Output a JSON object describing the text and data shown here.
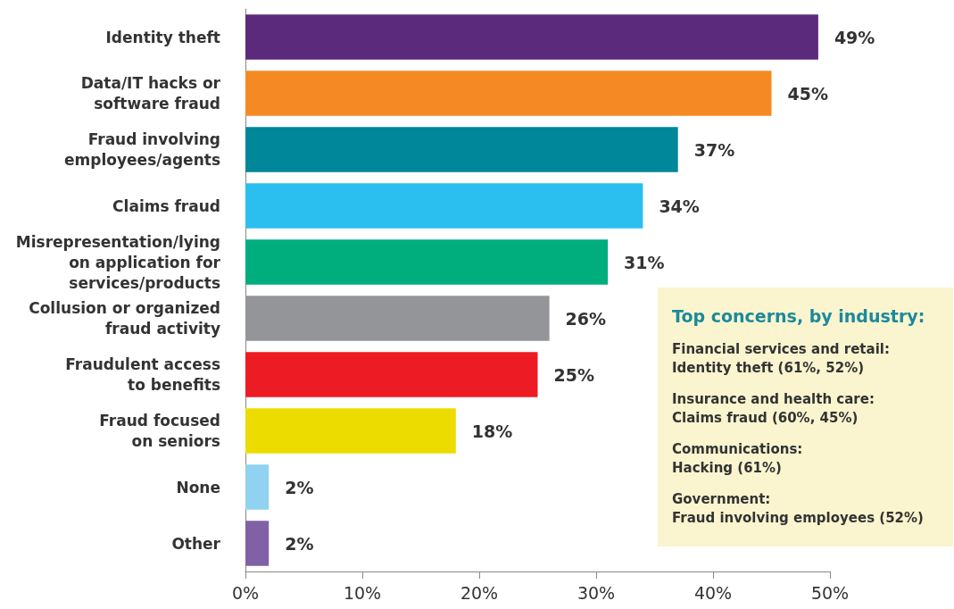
{
  "chart_data": {
    "type": "bar",
    "orientation": "horizontal",
    "categories": [
      "Identity theft",
      "Data/IT hacks or\nsoftware fraud",
      "Fraud involving\nemployees/agents",
      "Claims fraud",
      "Misrepresentation/lying\non application for\nservices/products",
      "Collusion or organized\nfraud activity",
      "Fraudulent access\nto benefits",
      "Fraud focused\non seniors",
      "None",
      "Other"
    ],
    "values": [
      49,
      45,
      37,
      34,
      31,
      26,
      25,
      18,
      2,
      2
    ],
    "colors": [
      "#5c2a7c",
      "#f58a25",
      "#00879a",
      "#2bbfef",
      "#00ad7d",
      "#939598",
      "#ed1c24",
      "#ecdc00",
      "#91d2f0",
      "#8061a5"
    ],
    "value_labels": [
      "49%",
      "45%",
      "37%",
      "34%",
      "31%",
      "26%",
      "25%",
      "18%",
      "2%",
      "2%"
    ],
    "xlim": [
      0,
      50
    ],
    "xticks": [
      {
        "value": 0,
        "label": "0%"
      },
      {
        "value": 10,
        "label": "10%"
      },
      {
        "value": 20,
        "label": "20%"
      },
      {
        "value": 30,
        "label": "30%"
      },
      {
        "value": 40,
        "label": "40%"
      },
      {
        "value": 50,
        "label": "50%"
      }
    ],
    "grid": false,
    "annotations": [
      "Top concerns, by industry:",
      "Financial services and retail:\nIdentity theft (61%, 52%)",
      "Insurance and health care:\nClaims fraud (60%, 45%)",
      "Communications:\nHacking (61%)",
      "Government:\nFraud involving employees (52%)"
    ]
  }
}
